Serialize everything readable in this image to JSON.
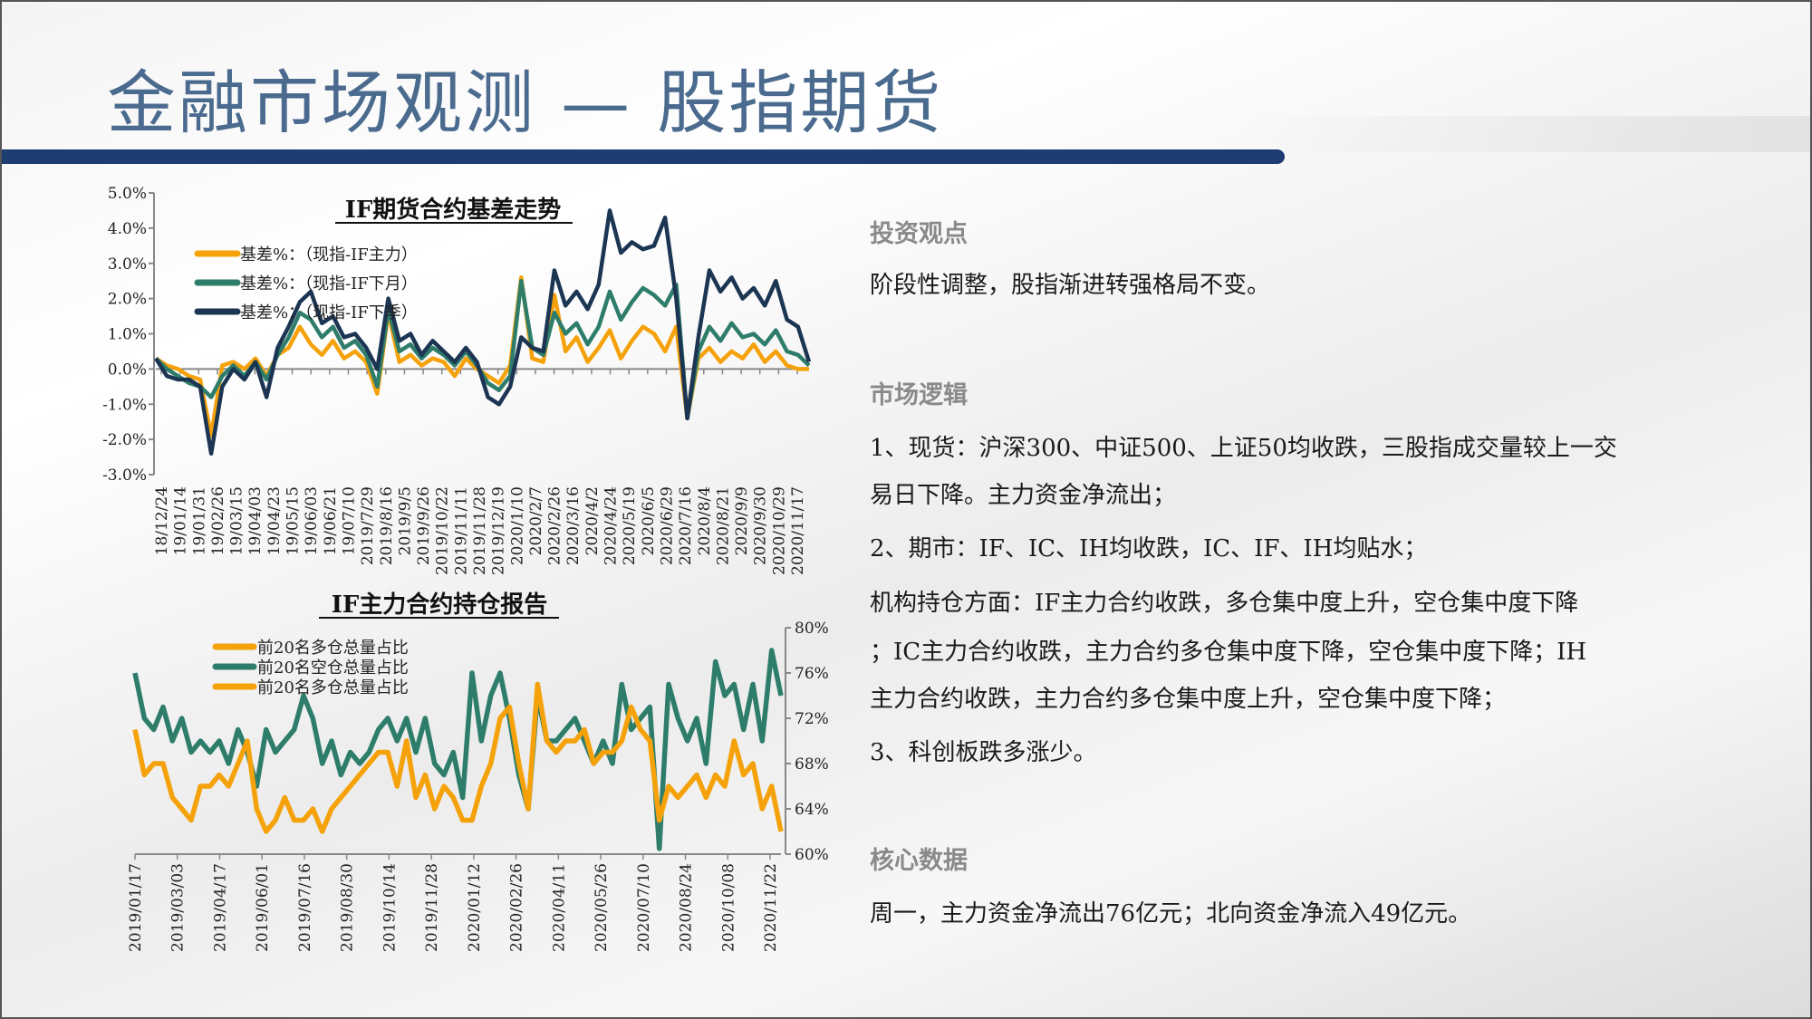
{
  "page": {
    "title": "金融市场观测 — 股指期货",
    "accent": "#1d3c72",
    "title_color": "#4a6a8e"
  },
  "right": {
    "view_heading": "投资观点",
    "view_text": "阶段性调整，股指渐进转强格局不变。",
    "logic_heading": "市场逻辑",
    "logic_lines": [
      "1、现货：沪深300、中证500、上证50均收跌，三股指成交量较上一交",
      "易日下降。主力资金净流出；",
      "2、期市：IF、IC、IH均收跌，IC、IF、IH均贴水；",
      "机构持仓方面：IF主力合约收跌，多仓集中度上升，空仓集中度下降",
      "；IC主力合约收跌，主力合约多仓集中度下降，空仓集中度下降；IH",
      "主力合约收跌，主力合约多仓集中度上升，空仓集中度下降；",
      "3、科创板跌多涨少。"
    ],
    "core_heading": "核心数据",
    "core_text": "周一，主力资金净流出76亿元；北向资金净流入49亿元。"
  },
  "chart_data": [
    {
      "type": "line",
      "title": "IF期货合约基差走势",
      "ylim": [
        -3,
        5
      ],
      "yticks": [
        "5.0%",
        "4.0%",
        "3.0%",
        "2.0%",
        "1.0%",
        "0.0%",
        "-1.0%",
        "-2.0%",
        "-3.0%"
      ],
      "ytick_values": [
        5,
        4,
        3,
        2,
        1,
        0,
        -1,
        -2,
        -3
      ],
      "xticks": [
        "18/12/24",
        "19/01/14",
        "19/01/31",
        "19/02/26",
        "19/03/15",
        "19/04/03",
        "19/04/23",
        "19/05/15",
        "19/06/03",
        "19/06/21",
        "19/07/10",
        "2019/7/29",
        "2019/8/16",
        "2019/9/5",
        "2019/9/26",
        "2019/10/22",
        "2019/11/11",
        "2019/11/28",
        "2019/12/19",
        "2020/1/10",
        "2020/2/7",
        "2020/2/26",
        "2020/3/16",
        "2020/4/2",
        "2020/4/24",
        "2020/5/19",
        "2020/6/5",
        "2020/6/29",
        "2020/7/16",
        "2020/8/4",
        "2020/8/21",
        "2020/9/9",
        "2020/9/30",
        "2020/10/29",
        "2020/11/17"
      ],
      "legend": "top-left",
      "series": [
        {
          "name": "基差%：（现指-IF主力）",
          "color": "#f5a20a",
          "values": [
            0.3,
            0.1,
            0.0,
            -0.2,
            -0.3,
            -1.9,
            0.1,
            0.2,
            0.0,
            0.3,
            -0.2,
            0.4,
            0.6,
            1.2,
            0.7,
            0.4,
            0.8,
            0.3,
            0.5,
            0.2,
            -0.7,
            1.6,
            0.2,
            0.4,
            0.1,
            0.3,
            0.2,
            -0.2,
            0.3,
            0.0,
            -0.2,
            -0.4,
            0.1,
            2.6,
            0.3,
            0.2,
            2.1,
            0.5,
            0.9,
            0.2,
            0.6,
            1.1,
            0.3,
            0.8,
            1.2,
            1.0,
            0.5,
            1.2,
            -1.4,
            0.3,
            0.6,
            0.2,
            0.5,
            0.3,
            0.7,
            0.2,
            0.5,
            0.1,
            0.0,
            0.0
          ]
        },
        {
          "name": "基差%：（现指-IF下月）",
          "color": "#2e7d6b",
          "values": [
            0.3,
            0.0,
            -0.2,
            -0.4,
            -0.5,
            -0.8,
            -0.2,
            0.1,
            -0.2,
            0.2,
            -0.3,
            0.4,
            0.9,
            1.6,
            1.4,
            0.9,
            1.2,
            0.6,
            0.8,
            0.4,
            -0.5,
            1.7,
            0.5,
            0.7,
            0.3,
            0.6,
            0.4,
            0.1,
            0.5,
            0.1,
            -0.4,
            -0.6,
            -0.2,
            2.5,
            0.6,
            0.4,
            1.6,
            1.0,
            1.3,
            0.7,
            1.2,
            2.2,
            1.4,
            1.9,
            2.3,
            2.1,
            1.8,
            2.4,
            -1.4,
            0.5,
            1.2,
            0.8,
            1.3,
            0.9,
            1.0,
            0.7,
            1.1,
            0.5,
            0.4,
            0.1
          ]
        },
        {
          "name": "基差%：（现指-IF下季）",
          "color": "#1c3553",
          "values": [
            0.3,
            -0.2,
            -0.3,
            -0.3,
            -0.5,
            -2.4,
            -0.5,
            0.0,
            -0.3,
            0.2,
            -0.8,
            0.6,
            1.2,
            1.9,
            2.2,
            1.3,
            1.5,
            0.9,
            1.0,
            0.6,
            0.0,
            2.0,
            0.8,
            1.0,
            0.4,
            0.8,
            0.5,
            0.2,
            0.6,
            0.2,
            -0.8,
            -1.0,
            -0.5,
            0.9,
            0.6,
            0.5,
            2.8,
            1.8,
            2.2,
            1.7,
            2.4,
            4.5,
            3.3,
            3.6,
            3.4,
            3.5,
            4.3,
            2.0,
            -1.4,
            0.9,
            2.8,
            2.2,
            2.6,
            2.0,
            2.3,
            1.8,
            2.5,
            1.4,
            1.2,
            0.2
          ]
        }
      ]
    },
    {
      "type": "line",
      "title": "IF主力合约持仓报告",
      "ylim": [
        60,
        80
      ],
      "yticks": [
        "80%",
        "76%",
        "72%",
        "68%",
        "64%",
        "60%"
      ],
      "ytick_values": [
        80,
        76,
        72,
        68,
        64,
        60
      ],
      "y_axis_side": "right",
      "xticks": [
        "2019/01/17",
        "2019/03/03",
        "2019/04/17",
        "2019/06/01",
        "2019/07/16",
        "2019/08/30",
        "2019/10/14",
        "2019/11/28",
        "2020/01/12",
        "2020/02/26",
        "2020/04/11",
        "2020/05/26",
        "2020/07/10",
        "2020/08/24",
        "2020/10/08",
        "2020/11/22"
      ],
      "legend": "top-left",
      "legend_entries": [
        {
          "name": "前20名多仓总量占比",
          "color": "#f5a20a"
        },
        {
          "name": "前20名空仓总量占比",
          "color": "#2e7d6b"
        },
        {
          "name": "前20名多仓总量占比",
          "color": "#f5a20a"
        }
      ],
      "series": [
        {
          "name": "前20名空仓总量占比",
          "color": "#2e7d6b",
          "values": [
            76,
            72,
            71,
            73,
            70,
            72,
            69,
            70,
            69,
            70,
            68,
            71,
            69,
            66,
            71,
            69,
            70,
            71,
            74,
            72,
            68,
            70,
            67,
            69,
            68,
            69,
            71,
            72,
            70,
            72,
            69,
            72,
            68,
            67,
            69,
            65,
            76,
            70,
            74,
            76,
            72,
            67,
            64,
            74,
            70,
            70,
            71,
            72,
            70,
            68,
            70,
            68,
            75,
            71,
            72,
            73,
            60.5,
            75,
            72,
            70,
            72,
            68,
            77,
            74,
            75,
            71,
            75,
            70,
            78,
            74
          ]
        },
        {
          "name": "前20名多仓总量占比",
          "color": "#f5a20a",
          "values": [
            71,
            67,
            68,
            68,
            65,
            64,
            63,
            66,
            66,
            67,
            66,
            68,
            70,
            64,
            62,
            63,
            65,
            63,
            63,
            64,
            62,
            64,
            65,
            66,
            67,
            68,
            69,
            69,
            66,
            70,
            65,
            67,
            64,
            66,
            65,
            63,
            63,
            66,
            68,
            72,
            73,
            68,
            64,
            75,
            70,
            69,
            70,
            70,
            71,
            68,
            69,
            69,
            70,
            73,
            71,
            70,
            63,
            66,
            65,
            66,
            67,
            65,
            67,
            66,
            70,
            67,
            68,
            64,
            66,
            62
          ]
        }
      ]
    }
  ]
}
